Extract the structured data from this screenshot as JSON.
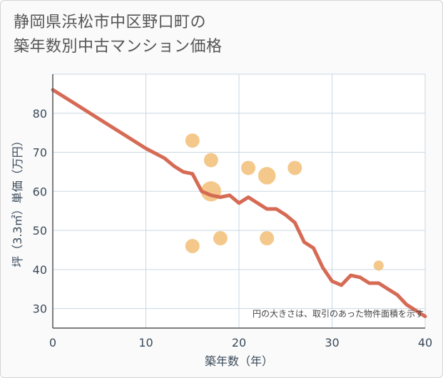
{
  "title_lines": [
    "静岡県浜松市中区野口町の",
    "築年数別中古マンション価格"
  ],
  "chart_data": {
    "type": "scatter",
    "title": "静岡県浜松市中区野口町の築年数別中古マンション価格",
    "xlabel": "築年数（年）",
    "ylabel": "坪（3.3㎡）単価（万円）",
    "xlim": [
      0,
      40
    ],
    "ylim": [
      25,
      90
    ],
    "xticks": [
      0,
      10,
      20,
      30,
      40
    ],
    "yticks": [
      30,
      40,
      50,
      60,
      70,
      80
    ],
    "grid": true,
    "note": "円の大きさは、取引のあった物件面積を示す",
    "points": [
      {
        "x": 15,
        "y": 73,
        "size": 1.0
      },
      {
        "x": 15,
        "y": 46,
        "size": 1.0
      },
      {
        "x": 17,
        "y": 68,
        "size": 1.0
      },
      {
        "x": 17,
        "y": 60,
        "size": 2.0
      },
      {
        "x": 18,
        "y": 48,
        "size": 1.0
      },
      {
        "x": 21,
        "y": 66,
        "size": 1.0
      },
      {
        "x": 23,
        "y": 64,
        "size": 1.5
      },
      {
        "x": 23,
        "y": 48,
        "size": 1.0
      },
      {
        "x": 26,
        "y": 66,
        "size": 1.0
      },
      {
        "x": 35,
        "y": 41,
        "size": 0.5
      }
    ],
    "trend": {
      "x": [
        0,
        2,
        4,
        6,
        8,
        10,
        12,
        13,
        14,
        15,
        16,
        17,
        18,
        19,
        20,
        21,
        22,
        23,
        24,
        25,
        26,
        27,
        28,
        29,
        30,
        31,
        32,
        33,
        34,
        35,
        36,
        37,
        38,
        39,
        40
      ],
      "y": [
        86,
        83,
        80,
        77,
        74,
        71,
        68.5,
        66.5,
        65,
        64.5,
        60,
        59,
        58.5,
        59,
        57,
        58.5,
        57,
        55.5,
        55.5,
        54,
        52,
        47,
        45.5,
        40.5,
        37,
        36,
        38.5,
        38,
        36.5,
        36.5,
        35,
        33.5,
        31,
        29.5,
        28
      ]
    },
    "colors": {
      "points": "#f2c07a",
      "trend": "#d66b55",
      "grid": "#c9d7e3",
      "axis": "#555555"
    }
  }
}
